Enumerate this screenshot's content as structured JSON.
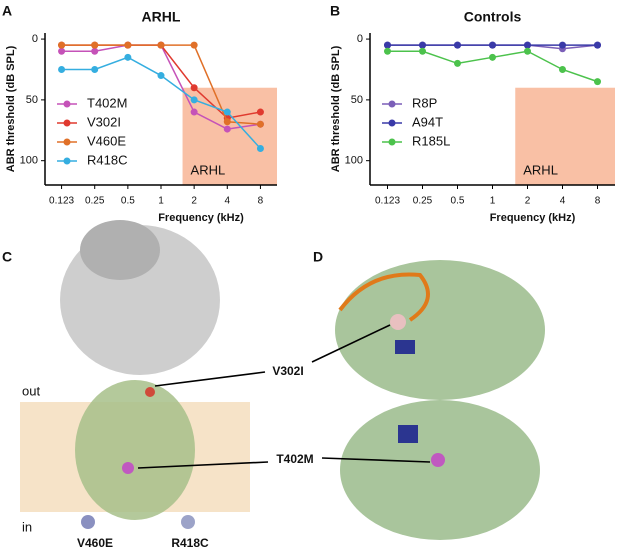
{
  "chart_data": [
    {
      "type": "line",
      "panel": "A",
      "title": "ARHL",
      "x_label": "Frequency (kHz)",
      "y_label": "ABR threshold (dB SPL)",
      "categories": [
        "0.123",
        "0.25",
        "0.5",
        "1",
        "2",
        "4",
        "8"
      ],
      "series": [
        {
          "name": "T402M",
          "color": "#c552b8",
          "values": [
            10,
            10,
            5,
            5,
            60,
            74,
            70
          ]
        },
        {
          "name": "V302I",
          "color": "#e03a2f",
          "values": [
            5,
            5,
            5,
            5,
            40,
            65,
            60
          ]
        },
        {
          "name": "V460E",
          "color": "#e07028",
          "values": [
            5,
            5,
            5,
            5,
            5,
            68,
            70
          ]
        },
        {
          "name": "R418C",
          "color": "#35aee0",
          "values": [
            25,
            25,
            15,
            30,
            50,
            60,
            90
          ]
        }
      ],
      "ylim": [
        -5,
        120
      ],
      "y_reversed": true,
      "yticks": [
        0,
        50,
        100
      ],
      "grid": false,
      "legend": "middle left",
      "region": {
        "label": "ARHL",
        "from": 40,
        "color": "#f9c0a5"
      }
    },
    {
      "type": "line",
      "panel": "B",
      "title": "Controls",
      "x_label": "Frequency (kHz)",
      "y_label": "ABR threshold (dB SPL)",
      "categories": [
        "0.123",
        "0.25",
        "0.5",
        "1",
        "2",
        "4",
        "8"
      ],
      "series": [
        {
          "name": "R8P",
          "color": "#7b5fb8",
          "values": [
            5,
            5,
            5,
            5,
            5,
            8,
            5
          ]
        },
        {
          "name": "A94T",
          "color": "#3a3aa8",
          "values": [
            5,
            5,
            5,
            5,
            5,
            5,
            5
          ]
        },
        {
          "name": "R185L",
          "color": "#4cc24c",
          "values": [
            10,
            10,
            20,
            15,
            10,
            25,
            35
          ]
        }
      ],
      "ylim": [
        -5,
        120
      ],
      "y_reversed": true,
      "yticks": [
        0,
        50,
        100
      ],
      "grid": false,
      "legend": "middle left",
      "region": {
        "label": "ARHL",
        "from": 40,
        "color": "#f9c0a5"
      }
    }
  ],
  "structure": {
    "panels": [
      "C",
      "D"
    ],
    "membrane": [
      "out",
      "in"
    ],
    "variants": [
      "V302I",
      "T402M",
      "V460E",
      "R418C"
    ]
  }
}
